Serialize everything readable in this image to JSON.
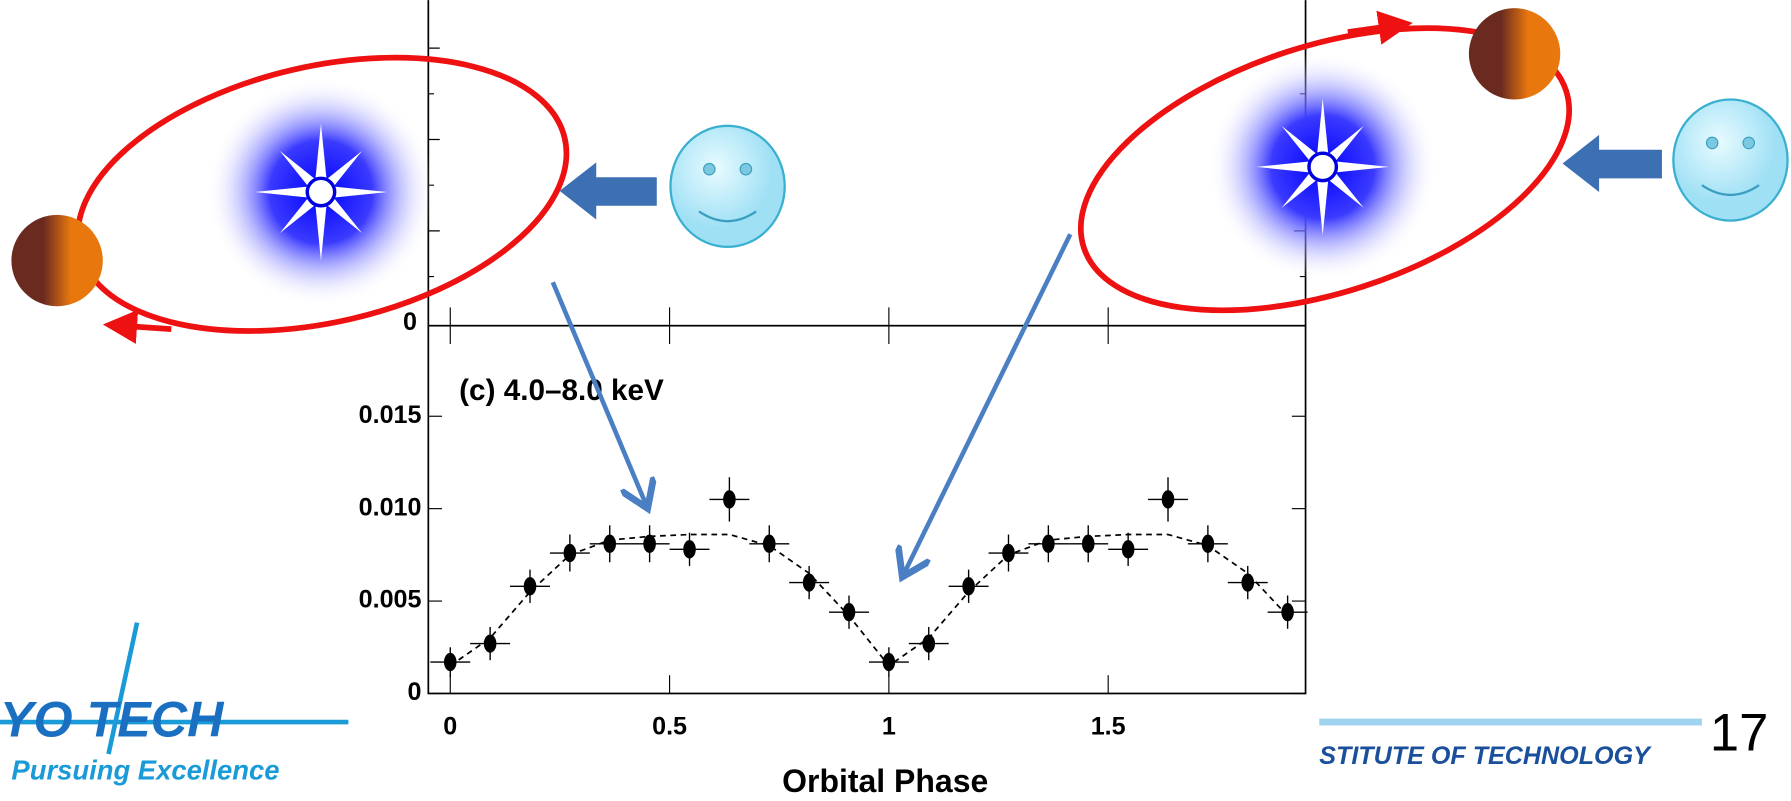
{
  "chart_data": {
    "type": "scatter",
    "annotation": "(c) 4.0–8.0 keV",
    "x_label": "Orbital Phase",
    "x": [
      0,
      0.0909,
      0.1818,
      0.2727,
      0.3636,
      0.4545,
      0.5455,
      0.6364,
      0.7273,
      0.8182,
      0.9091,
      1.0,
      1.0909,
      1.1818,
      1.2727,
      1.3636,
      1.4545,
      1.5455,
      1.6364,
      1.7273,
      1.8182,
      1.9091
    ],
    "series": [
      {
        "color": "#000000",
        "marker": "point",
        "values": [
          0.0017,
          0.0027,
          0.0058,
          0.0076,
          0.0081,
          0.0081,
          0.0078,
          0.0105,
          0.0081,
          0.006,
          0.0044,
          0.0017,
          0.0027,
          0.0058,
          0.0076,
          0.0081,
          0.0081,
          0.0078,
          0.0105,
          0.0081,
          0.006,
          0.0044
        ],
        "y_errors": [
          0.0008,
          0.0009,
          0.0009,
          0.001,
          0.001,
          0.001,
          0.0009,
          0.0012,
          0.001,
          0.0009,
          0.0009,
          0.0008,
          0.0009,
          0.0009,
          0.001,
          0.001,
          0.001,
          0.0009,
          0.0012,
          0.001,
          0.0009,
          0.0009
        ],
        "x_errors": [
          0.0455,
          0.0455,
          0.0455,
          0.0455,
          0.0455,
          0.0455,
          0.0455,
          0.0455,
          0.0455,
          0.0455,
          0.0455,
          0.0455,
          0.0455,
          0.0455,
          0.0455,
          0.0455,
          0.0455,
          0.0455,
          0.0455,
          0.0455,
          0.0455,
          0.0455
        ]
      },
      {
        "color": "#000000",
        "marker": "dashed-line",
        "values": [
          0.0015,
          0.003,
          0.0055,
          0.0075,
          0.0083,
          0.0085,
          0.0086,
          0.0086,
          0.008,
          0.0065,
          0.0042,
          0.0015,
          0.003,
          0.0055,
          0.0075,
          0.0083,
          0.0085,
          0.0086,
          0.0086,
          0.008,
          0.0065,
          0.0042
        ]
      }
    ],
    "xlim": [
      -0.05,
      1.95
    ],
    "ylim": [
      0,
      0.0199
    ],
    "xticks": [
      0,
      0.5,
      1,
      1.5
    ],
    "yticks": [
      0,
      0.005,
      {
        "value": 0.01,
        "label": "0.010"
      },
      0.015
    ],
    "upper_panel_tick_label": "0"
  },
  "slide": {
    "logo_left": "YO TECH",
    "logo_tagline": "Pursuing Excellence",
    "logo_right": "STITUTE OF TECHNOLOGY",
    "page_number": "17"
  }
}
